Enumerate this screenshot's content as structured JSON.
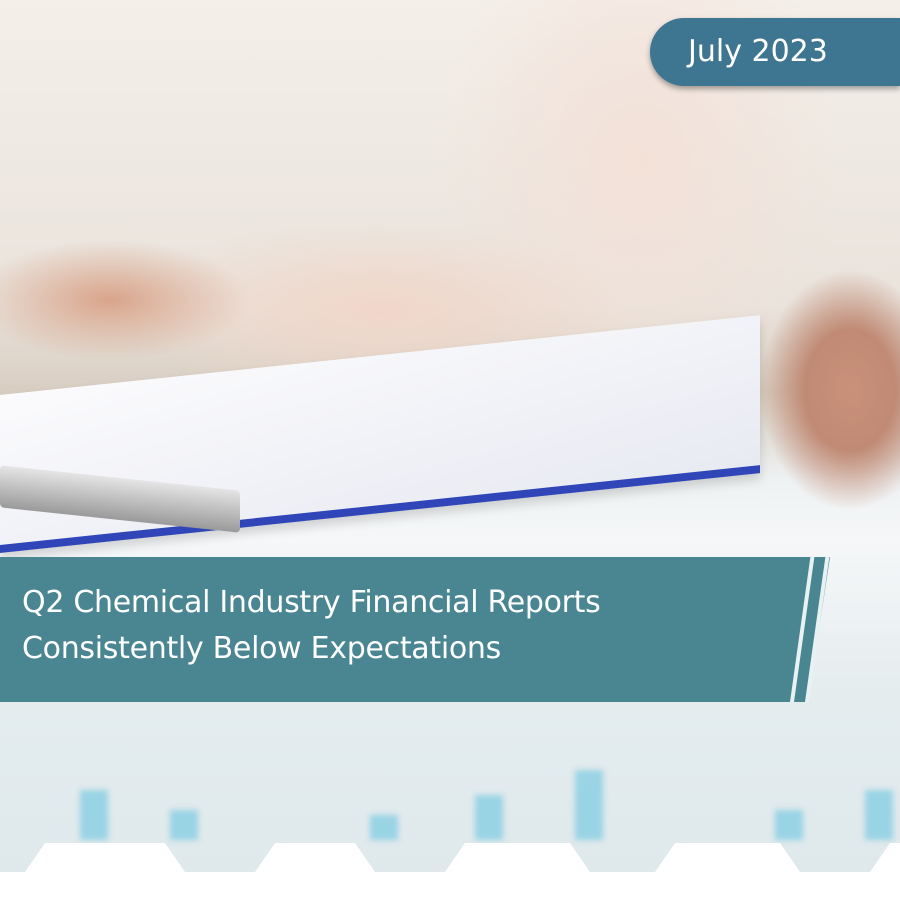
{
  "badge": {
    "date": "July 2023"
  },
  "banner": {
    "title_line1": "Q2 Chemical Industry Financial Reports",
    "title_line2": "Consistently Below Expectations"
  },
  "colors": {
    "banner": "#4a8592",
    "badge": "#3e7590",
    "text": "#ffffff"
  }
}
